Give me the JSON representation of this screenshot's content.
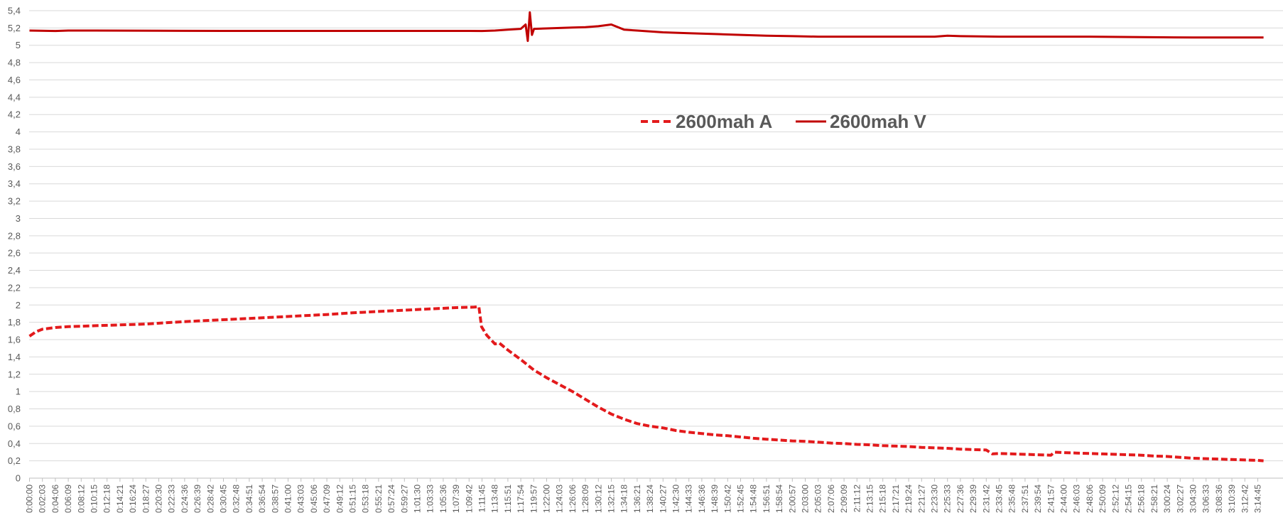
{
  "chart_data": {
    "type": "line",
    "title": "",
    "xlabel": "",
    "ylabel": "",
    "ylim": [
      0,
      5.4
    ],
    "y_ticks": [
      "0",
      "0,2",
      "0,4",
      "0,6",
      "0,8",
      "1",
      "1,2",
      "1,4",
      "1,6",
      "1,8",
      "2",
      "2,2",
      "2,4",
      "2,6",
      "2,8",
      "3",
      "3,2",
      "3,4",
      "3,6",
      "3,8",
      "4",
      "4,2",
      "4,4",
      "4,6",
      "4,8",
      "5",
      "5,2",
      "5,4"
    ],
    "x_ticks": [
      "0:00:00",
      "0:02:03",
      "0:04:06",
      "0:06:09",
      "0:08:12",
      "0:10:15",
      "0:12:18",
      "0:14:21",
      "0:16:24",
      "0:18:27",
      "0:20:30",
      "0:22:33",
      "0:24:36",
      "0:26:39",
      "0:28:42",
      "0:30:45",
      "0:32:48",
      "0:34:51",
      "0:36:54",
      "0:38:57",
      "0:41:00",
      "0:43:03",
      "0:45:06",
      "0:47:09",
      "0:49:12",
      "0:51:15",
      "0:53:18",
      "0:55:21",
      "0:57:24",
      "0:59:27",
      "1:01:30",
      "1:03:33",
      "1:05:36",
      "1:07:39",
      "1:09:42",
      "1:11:45",
      "1:13:48",
      "1:15:51",
      "1:17:54",
      "1:19:57",
      "1:22:00",
      "1:24:03",
      "1:26:06",
      "1:28:09",
      "1:30:12",
      "1:32:15",
      "1:34:18",
      "1:36:21",
      "1:38:24",
      "1:40:27",
      "1:42:30",
      "1:44:33",
      "1:46:36",
      "1:48:39",
      "1:50:42",
      "1:52:45",
      "1:54:48",
      "1:56:51",
      "1:58:54",
      "2:00:57",
      "2:03:00",
      "2:05:03",
      "2:07:06",
      "2:09:09",
      "2:11:12",
      "2:13:15",
      "2:15:18",
      "2:17:21",
      "2:19:24",
      "2:21:27",
      "2:23:30",
      "2:25:33",
      "2:27:36",
      "2:29:39",
      "2:31:42",
      "2:33:45",
      "2:35:48",
      "2:37:51",
      "2:39:54",
      "2:41:57",
      "2:44:00",
      "2:46:03",
      "2:48:06",
      "2:50:09",
      "2:52:12",
      "2:54:15",
      "2:56:18",
      "2:58:21",
      "3:00:24",
      "3:02:27",
      "3:04:30",
      "3:06:33",
      "3:08:36",
      "3:10:39",
      "3:12:42",
      "3:14:45"
    ],
    "legend_position": "top-center",
    "grid": true,
    "series": [
      {
        "name": "2600mah A",
        "style": "dashed",
        "color": "#e31a1c",
        "points": [
          [
            "0:00:00",
            1.64
          ],
          [
            "0:01:00",
            1.69
          ],
          [
            "0:02:03",
            1.72
          ],
          [
            "0:04:06",
            1.74
          ],
          [
            "0:06:09",
            1.75
          ],
          [
            "0:08:12",
            1.755
          ],
          [
            "0:10:15",
            1.76
          ],
          [
            "0:14:21",
            1.77
          ],
          [
            "0:18:27",
            1.78
          ],
          [
            "0:22:33",
            1.8
          ],
          [
            "0:26:39",
            1.815
          ],
          [
            "0:30:45",
            1.83
          ],
          [
            "0:34:51",
            1.845
          ],
          [
            "0:38:57",
            1.86
          ],
          [
            "0:43:03",
            1.875
          ],
          [
            "0:47:09",
            1.89
          ],
          [
            "0:51:15",
            1.91
          ],
          [
            "0:55:21",
            1.925
          ],
          [
            "0:59:27",
            1.94
          ],
          [
            "1:03:33",
            1.955
          ],
          [
            "1:07:39",
            1.97
          ],
          [
            "1:10:30",
            1.975
          ],
          [
            "1:11:15",
            1.98
          ],
          [
            "1:11:40",
            1.75
          ],
          [
            "1:12:30",
            1.65
          ],
          [
            "1:13:48",
            1.55
          ],
          [
            "1:14:30",
            1.56
          ],
          [
            "1:15:51",
            1.48
          ],
          [
            "1:17:54",
            1.37
          ],
          [
            "1:19:57",
            1.25
          ],
          [
            "1:22:00",
            1.16
          ],
          [
            "1:24:03",
            1.08
          ],
          [
            "1:26:06",
            1.0
          ],
          [
            "1:28:09",
            0.91
          ],
          [
            "1:30:12",
            0.82
          ],
          [
            "1:32:15",
            0.74
          ],
          [
            "1:34:18",
            0.68
          ],
          [
            "1:36:21",
            0.63
          ],
          [
            "1:38:24",
            0.6
          ],
          [
            "1:40:27",
            0.58
          ],
          [
            "1:42:30",
            0.55
          ],
          [
            "1:44:33",
            0.53
          ],
          [
            "1:46:36",
            0.515
          ],
          [
            "1:48:39",
            0.5
          ],
          [
            "1:50:42",
            0.49
          ],
          [
            "1:52:45",
            0.475
          ],
          [
            "1:54:48",
            0.46
          ],
          [
            "1:56:51",
            0.45
          ],
          [
            "1:58:54",
            0.44
          ],
          [
            "2:00:57",
            0.43
          ],
          [
            "2:03:00",
            0.425
          ],
          [
            "2:05:03",
            0.415
          ],
          [
            "2:07:06",
            0.405
          ],
          [
            "2:09:09",
            0.4
          ],
          [
            "2:11:12",
            0.39
          ],
          [
            "2:13:15",
            0.385
          ],
          [
            "2:15:18",
            0.375
          ],
          [
            "2:17:21",
            0.37
          ],
          [
            "2:19:24",
            0.365
          ],
          [
            "2:21:27",
            0.355
          ],
          [
            "2:23:30",
            0.35
          ],
          [
            "2:25:33",
            0.345
          ],
          [
            "2:27:36",
            0.335
          ],
          [
            "2:29:39",
            0.33
          ],
          [
            "2:31:42",
            0.325
          ],
          [
            "2:32:40",
            0.28
          ],
          [
            "2:33:45",
            0.285
          ],
          [
            "2:35:48",
            0.28
          ],
          [
            "2:37:51",
            0.275
          ],
          [
            "2:39:54",
            0.27
          ],
          [
            "2:41:57",
            0.265
          ],
          [
            "2:42:30",
            0.3
          ],
          [
            "2:44:00",
            0.295
          ],
          [
            "2:46:03",
            0.29
          ],
          [
            "2:48:06",
            0.285
          ],
          [
            "2:50:09",
            0.28
          ],
          [
            "2:52:12",
            0.275
          ],
          [
            "2:54:15",
            0.27
          ],
          [
            "2:56:18",
            0.265
          ],
          [
            "2:58:21",
            0.255
          ],
          [
            "3:00:24",
            0.25
          ],
          [
            "3:02:27",
            0.24
          ],
          [
            "3:04:30",
            0.23
          ],
          [
            "3:06:33",
            0.225
          ],
          [
            "3:08:36",
            0.22
          ],
          [
            "3:10:39",
            0.215
          ],
          [
            "3:12:42",
            0.21
          ],
          [
            "3:14:45",
            0.205
          ],
          [
            "3:15:40",
            0.2
          ]
        ]
      },
      {
        "name": "2600mah V",
        "style": "solid",
        "color": "#c00000",
        "points": [
          [
            "0:00:00",
            5.17
          ],
          [
            "0:04:06",
            5.165
          ],
          [
            "0:06:09",
            5.17
          ],
          [
            "0:10:15",
            5.17
          ],
          [
            "0:20:30",
            5.168
          ],
          [
            "0:30:45",
            5.166
          ],
          [
            "0:41:00",
            5.166
          ],
          [
            "0:51:15",
            5.166
          ],
          [
            "1:01:30",
            5.166
          ],
          [
            "1:09:42",
            5.166
          ],
          [
            "1:11:45",
            5.165
          ],
          [
            "1:13:48",
            5.17
          ],
          [
            "1:15:51",
            5.18
          ],
          [
            "1:17:54",
            5.19
          ],
          [
            "1:18:40",
            5.24
          ],
          [
            "1:19:00",
            5.05
          ],
          [
            "1:19:20",
            5.38
          ],
          [
            "1:19:40",
            5.12
          ],
          [
            "1:20:00",
            5.19
          ],
          [
            "1:22:00",
            5.195
          ],
          [
            "1:24:03",
            5.2
          ],
          [
            "1:26:06",
            5.205
          ],
          [
            "1:28:09",
            5.21
          ],
          [
            "1:30:12",
            5.22
          ],
          [
            "1:32:15",
            5.24
          ],
          [
            "1:34:18",
            5.18
          ],
          [
            "1:36:21",
            5.17
          ],
          [
            "1:38:24",
            5.16
          ],
          [
            "1:40:27",
            5.15
          ],
          [
            "1:44:33",
            5.14
          ],
          [
            "1:48:39",
            5.13
          ],
          [
            "1:52:45",
            5.12
          ],
          [
            "1:56:51",
            5.11
          ],
          [
            "2:00:57",
            5.105
          ],
          [
            "2:05:03",
            5.1
          ],
          [
            "2:11:12",
            5.1
          ],
          [
            "2:17:21",
            5.1
          ],
          [
            "2:23:30",
            5.1
          ],
          [
            "2:25:33",
            5.11
          ],
          [
            "2:27:36",
            5.105
          ],
          [
            "2:33:45",
            5.1
          ],
          [
            "2:39:54",
            5.1
          ],
          [
            "2:48:06",
            5.1
          ],
          [
            "2:56:18",
            5.095
          ],
          [
            "3:04:30",
            5.09
          ],
          [
            "3:12:42",
            5.09
          ],
          [
            "3:15:40",
            5.09
          ]
        ]
      }
    ]
  }
}
